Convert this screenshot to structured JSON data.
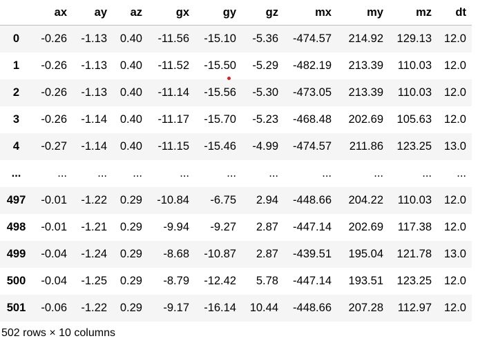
{
  "table": {
    "columns": [
      "",
      "ax",
      "ay",
      "az",
      "gx",
      "gy",
      "gz",
      "mx",
      "my",
      "mz",
      "dt"
    ],
    "rows": [
      {
        "index": "0",
        "values": [
          "-0.26",
          "-1.13",
          "0.40",
          "-11.56",
          "-15.10",
          "-5.36",
          "-474.57",
          "214.92",
          "129.13",
          "12.0"
        ]
      },
      {
        "index": "1",
        "values": [
          "-0.26",
          "-1.13",
          "0.40",
          "-11.52",
          "-15.50",
          "-5.29",
          "-482.19",
          "213.39",
          "110.03",
          "12.0"
        ]
      },
      {
        "index": "2",
        "values": [
          "-0.26",
          "-1.13",
          "0.40",
          "-11.14",
          "-15.56",
          "-5.30",
          "-473.05",
          "213.39",
          "110.03",
          "12.0"
        ]
      },
      {
        "index": "3",
        "values": [
          "-0.26",
          "-1.14",
          "0.40",
          "-11.17",
          "-15.70",
          "-5.23",
          "-468.48",
          "202.69",
          "105.63",
          "12.0"
        ]
      },
      {
        "index": "4",
        "values": [
          "-0.27",
          "-1.14",
          "0.40",
          "-11.15",
          "-15.46",
          "-4.99",
          "-474.57",
          "211.86",
          "123.25",
          "13.0"
        ]
      },
      {
        "index": "...",
        "values": [
          "...",
          "...",
          "...",
          "...",
          "...",
          "...",
          "...",
          "...",
          "...",
          "..."
        ]
      },
      {
        "index": "497",
        "values": [
          "-0.01",
          "-1.22",
          "0.29",
          "-10.84",
          "-6.75",
          "2.94",
          "-448.66",
          "204.22",
          "110.03",
          "12.0"
        ]
      },
      {
        "index": "498",
        "values": [
          "-0.01",
          "-1.21",
          "0.29",
          "-9.94",
          "-9.27",
          "2.87",
          "-447.14",
          "202.69",
          "117.38",
          "12.0"
        ]
      },
      {
        "index": "499",
        "values": [
          "-0.04",
          "-1.24",
          "0.29",
          "-8.68",
          "-10.87",
          "2.87",
          "-439.51",
          "195.04",
          "121.78",
          "13.0"
        ]
      },
      {
        "index": "500",
        "values": [
          "-0.04",
          "-1.25",
          "0.29",
          "-8.79",
          "-12.42",
          "5.78",
          "-447.14",
          "193.51",
          "123.25",
          "12.0"
        ]
      },
      {
        "index": "501",
        "values": [
          "-0.06",
          "-1.22",
          "0.29",
          "-9.17",
          "-16.14",
          "10.44",
          "-448.66",
          "207.28",
          "112.97",
          "12.0"
        ]
      }
    ]
  },
  "shape_caption": "502 rows × 10 columns",
  "colors": {
    "stripe": "#f5f5f5",
    "marker": "#e02020"
  }
}
